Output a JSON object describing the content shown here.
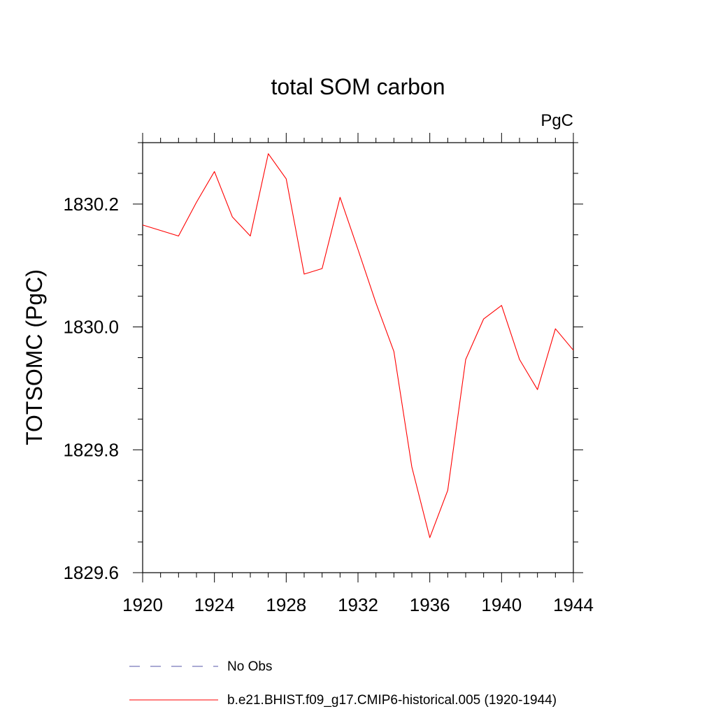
{
  "chart_data": {
    "type": "line",
    "title": "total SOM carbon",
    "units_label": "PgC",
    "ylabel": "TOTSOMC  (PgC)",
    "xlabel": "",
    "xlim": [
      1920,
      1944
    ],
    "ylim": [
      1829.6,
      1830.3
    ],
    "x_ticks": [
      1920,
      1924,
      1928,
      1932,
      1936,
      1940,
      1944
    ],
    "x_tick_labels": [
      "1920",
      "1924",
      "1928",
      "1932",
      "1936",
      "1940",
      "1944"
    ],
    "y_ticks": [
      1829.6,
      1829.8,
      1830.0,
      1830.2
    ],
    "y_tick_labels": [
      "1829.6",
      "1829.8",
      "1830.0",
      "1830.2"
    ],
    "grid": false,
    "series": [
      {
        "name": "b.e21.BHIST.f09_g17.CMIP6-historical.005 (1920-1944)",
        "color": "#ff0000",
        "style": "solid",
        "x": [
          1920,
          1921,
          1922,
          1923,
          1924,
          1925,
          1926,
          1927,
          1928,
          1929,
          1930,
          1931,
          1932,
          1933,
          1934,
          1935,
          1936,
          1937,
          1938,
          1939,
          1940,
          1941,
          1942,
          1943,
          1944
        ],
        "y": [
          1830.166,
          1830.157,
          1830.148,
          1830.203,
          1830.253,
          1830.179,
          1830.148,
          1830.282,
          1830.241,
          1830.086,
          1830.095,
          1830.211,
          1830.126,
          1830.039,
          1829.96,
          1829.772,
          1829.657,
          1829.734,
          1829.947,
          1830.013,
          1830.035,
          1829.947,
          1829.898,
          1829.997,
          1829.962
        ]
      }
    ],
    "legend": {
      "placement": "bottom",
      "entries": [
        {
          "label": "No Obs",
          "color": "#5555aa",
          "style": "dashed"
        },
        {
          "label": "b.e21.BHIST.f09_g17.CMIP6-historical.005 (1920-1944)",
          "color": "#ff0000",
          "style": "solid"
        }
      ]
    }
  }
}
